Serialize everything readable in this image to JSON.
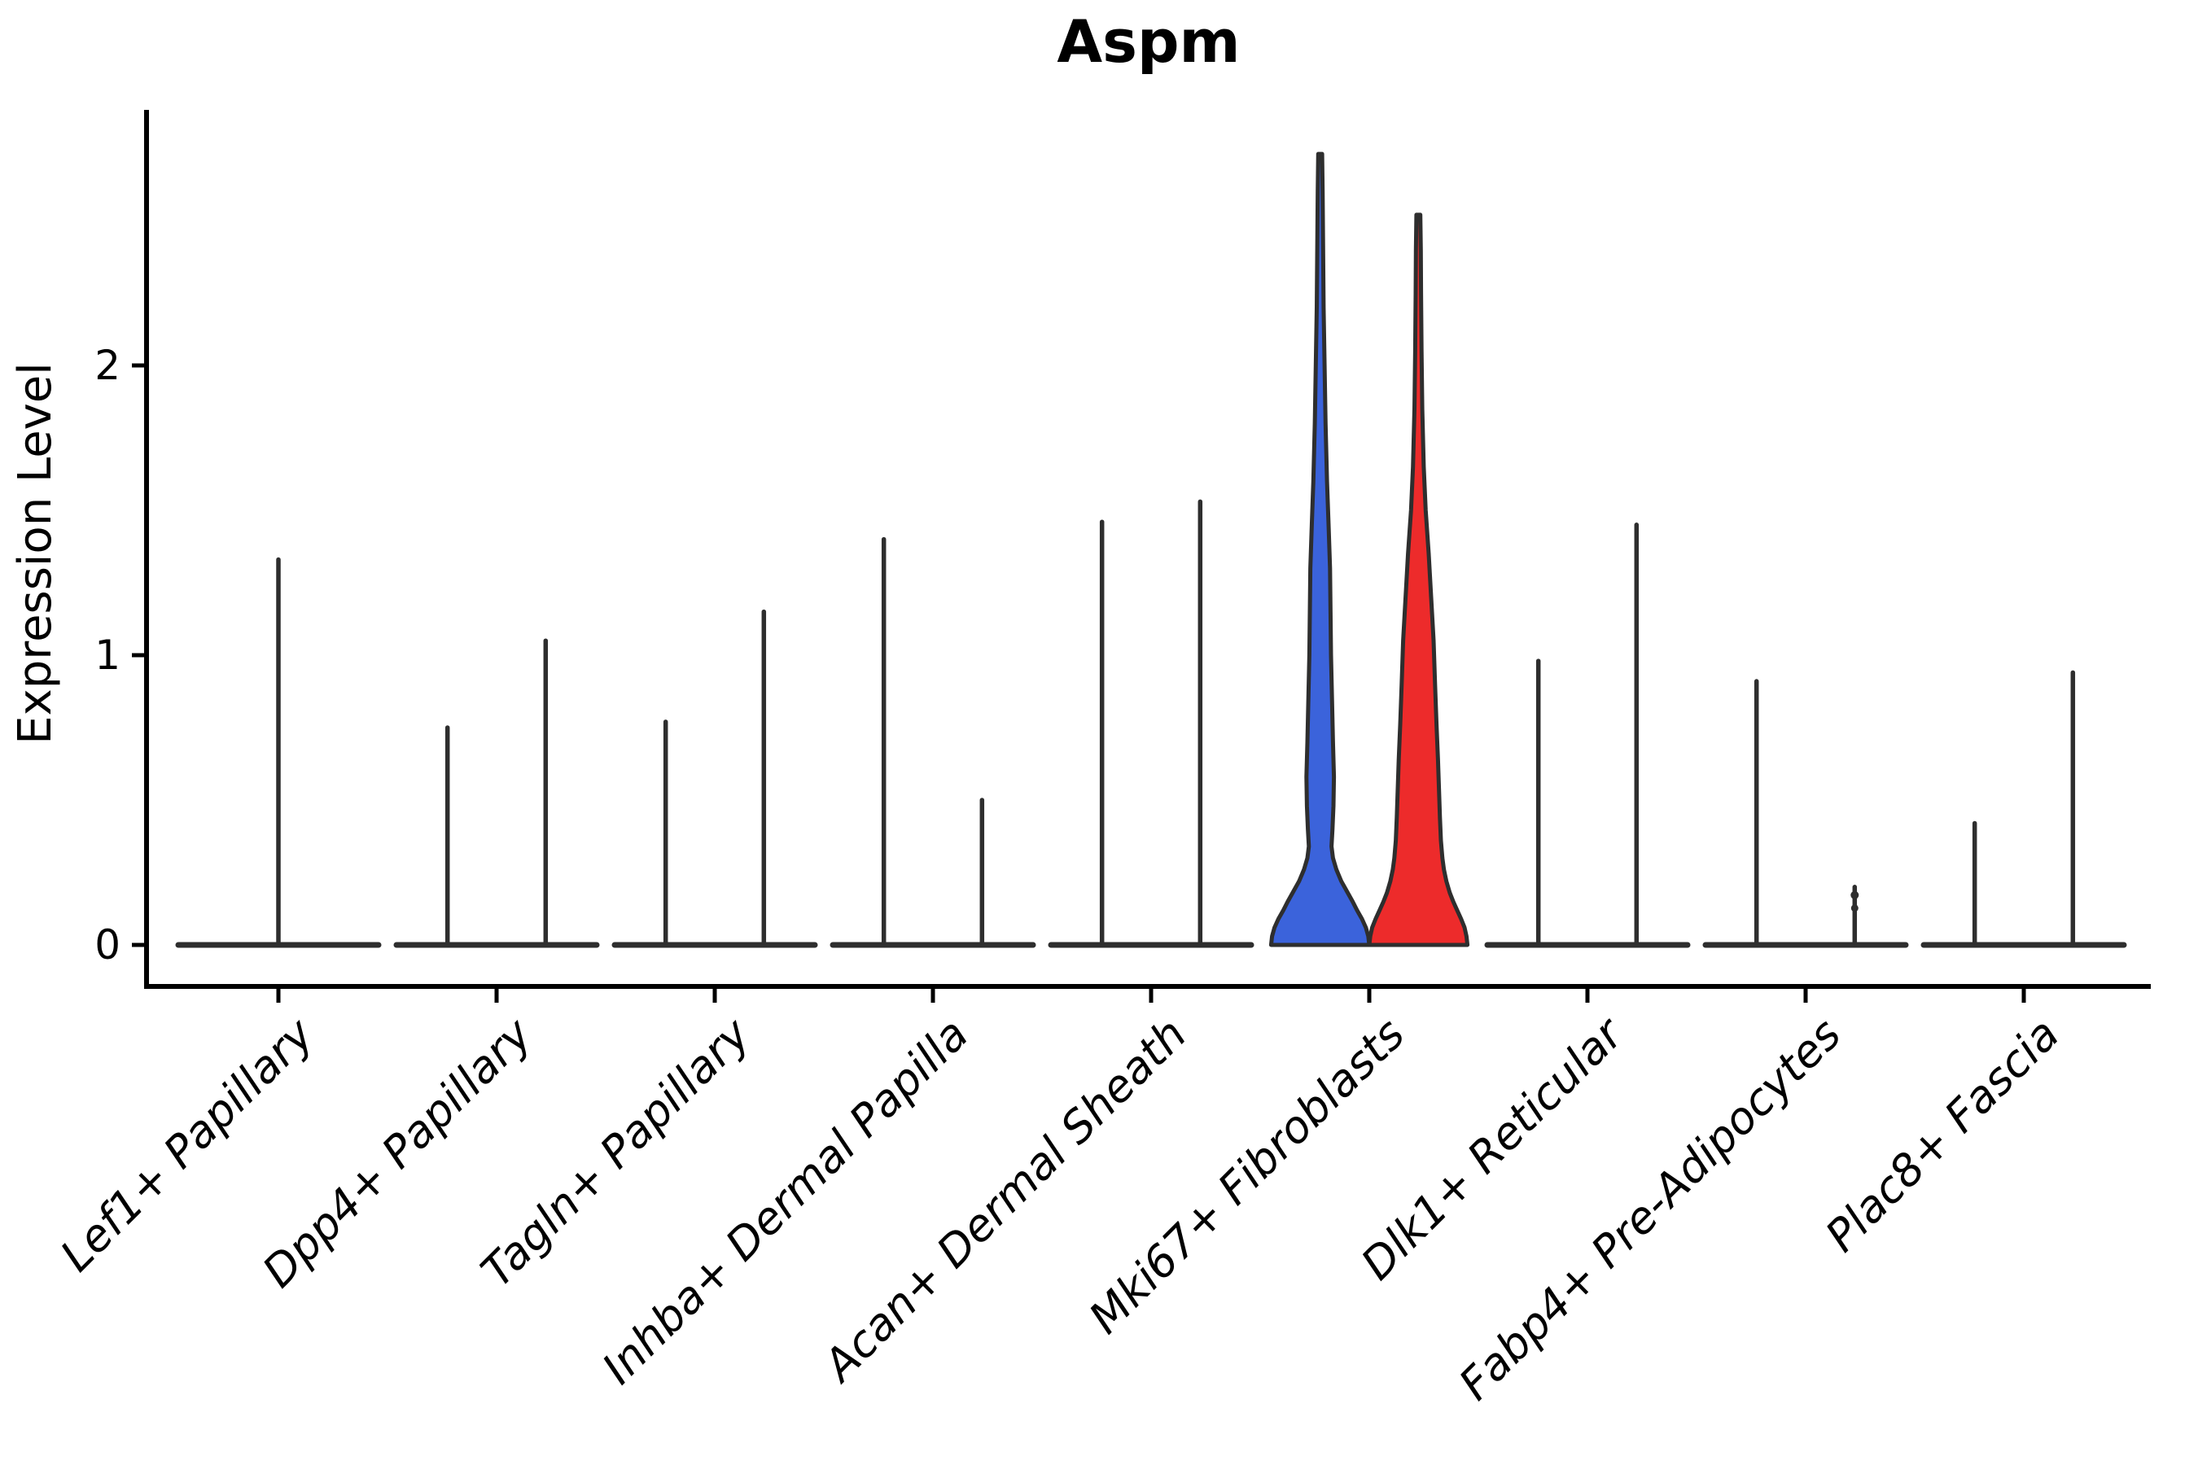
{
  "title": "Aspm",
  "chart_data": {
    "type": "violin",
    "title": "Aspm",
    "xlabel": "",
    "ylabel": "Expression Level",
    "yticks": [
      "0",
      "1",
      "2"
    ],
    "ylim": [
      -0.14,
      2.88
    ],
    "grid": false,
    "legend": "none",
    "categories": [
      "Lef1+ Papillary",
      "Dpp4+ Papillary",
      "Tagln+ Papillary",
      "Inhba+ Dermal Papilla",
      "Acan+ Dermal Sheath",
      "Mki67+ Fibroblasts",
      "Dlk1+ Reticular",
      "Fabp4+ Pre-Adipocytes",
      "Plac8+ Fascia"
    ],
    "colors": {
      "split_left_fill": "#3B63DB",
      "split_right_fill": "#ED2B2B",
      "line": "#2e2e2e",
      "axis": "#000000"
    },
    "violins": [
      {
        "category_index": 0,
        "category": "Lef1+ Papillary",
        "offset": "center",
        "max_expression": 1.33,
        "style": "spike"
      },
      {
        "category_index": 1,
        "category": "Dpp4+ Papillary",
        "offset": "left",
        "max_expression": 0.75,
        "style": "spike"
      },
      {
        "category_index": 1,
        "category": "Dpp4+ Papillary",
        "offset": "right",
        "max_expression": 1.05,
        "style": "spike"
      },
      {
        "category_index": 2,
        "category": "Tagln+ Papillary",
        "offset": "left",
        "max_expression": 0.77,
        "style": "spike"
      },
      {
        "category_index": 2,
        "category": "Tagln+ Papillary",
        "offset": "right",
        "max_expression": 1.15,
        "style": "spike"
      },
      {
        "category_index": 3,
        "category": "Inhba+ Dermal Papilla",
        "offset": "left",
        "max_expression": 1.4,
        "style": "spike"
      },
      {
        "category_index": 3,
        "category": "Inhba+ Dermal Papilla",
        "offset": "right",
        "max_expression": 0.5,
        "style": "spike"
      },
      {
        "category_index": 4,
        "category": "Acan+ Dermal Sheath",
        "offset": "left",
        "max_expression": 1.46,
        "style": "spike"
      },
      {
        "category_index": 4,
        "category": "Acan+ Dermal Sheath",
        "offset": "right",
        "max_expression": 1.53,
        "style": "spike"
      },
      {
        "category_index": 5,
        "category": "Mki67+ Fibroblasts",
        "offset": "left",
        "max_expression": 2.73,
        "style": "violin",
        "fill": "#3B63DB",
        "profile": "mki67_left"
      },
      {
        "category_index": 5,
        "category": "Mki67+ Fibroblasts",
        "offset": "right",
        "max_expression": 2.52,
        "style": "violin",
        "fill": "#ED2B2B",
        "profile": "mki67_right"
      },
      {
        "category_index": 6,
        "category": "Dlk1+ Reticular",
        "offset": "left",
        "max_expression": 0.98,
        "style": "spike"
      },
      {
        "category_index": 6,
        "category": "Dlk1+ Reticular",
        "offset": "right",
        "max_expression": 1.45,
        "style": "spike"
      },
      {
        "category_index": 7,
        "category": "Fabp4+ Pre-Adipocytes",
        "offset": "left",
        "max_expression": 0.91,
        "style": "spike"
      },
      {
        "category_index": 7,
        "category": "Fabp4+ Pre-Adipocytes",
        "offset": "right",
        "max_expression": 0.2,
        "style": "bead"
      },
      {
        "category_index": 8,
        "category": "Plac8+ Fascia",
        "offset": "left",
        "max_expression": 0.42,
        "style": "spike"
      },
      {
        "category_index": 8,
        "category": "Plac8+ Fascia",
        "offset": "right",
        "max_expression": 0.94,
        "style": "spike"
      }
    ],
    "density_profiles": {
      "mki67_left": [
        [
          0.0,
          1.0
        ],
        [
          0.03,
          0.98
        ],
        [
          0.06,
          0.93
        ],
        [
          0.09,
          0.85
        ],
        [
          0.12,
          0.75
        ],
        [
          0.15,
          0.66
        ],
        [
          0.18,
          0.56
        ],
        [
          0.22,
          0.43
        ],
        [
          0.26,
          0.33
        ],
        [
          0.3,
          0.26
        ],
        [
          0.34,
          0.23
        ],
        [
          0.4,
          0.25
        ],
        [
          0.48,
          0.27
        ],
        [
          0.58,
          0.28
        ],
        [
          0.7,
          0.26
        ],
        [
          0.85,
          0.24
        ],
        [
          1.0,
          0.22
        ],
        [
          1.15,
          0.21
        ],
        [
          1.3,
          0.2
        ],
        [
          1.45,
          0.17
        ],
        [
          1.6,
          0.14
        ],
        [
          1.8,
          0.11
        ],
        [
          2.0,
          0.09
        ],
        [
          2.2,
          0.07
        ],
        [
          2.4,
          0.06
        ],
        [
          2.6,
          0.05
        ],
        [
          2.73,
          0.04
        ]
      ],
      "mki67_right": [
        [
          0.0,
          1.0
        ],
        [
          0.03,
          0.98
        ],
        [
          0.06,
          0.94
        ],
        [
          0.09,
          0.87
        ],
        [
          0.12,
          0.79
        ],
        [
          0.15,
          0.71
        ],
        [
          0.18,
          0.64
        ],
        [
          0.22,
          0.57
        ],
        [
          0.26,
          0.52
        ],
        [
          0.3,
          0.49
        ],
        [
          0.36,
          0.46
        ],
        [
          0.44,
          0.44
        ],
        [
          0.54,
          0.42
        ],
        [
          0.64,
          0.4
        ],
        [
          0.76,
          0.37
        ],
        [
          0.9,
          0.34
        ],
        [
          1.05,
          0.31
        ],
        [
          1.2,
          0.26
        ],
        [
          1.35,
          0.21
        ],
        [
          1.5,
          0.15
        ],
        [
          1.65,
          0.11
        ],
        [
          1.85,
          0.08
        ],
        [
          2.05,
          0.065
        ],
        [
          2.25,
          0.055
        ],
        [
          2.4,
          0.05
        ],
        [
          2.52,
          0.04
        ]
      ]
    }
  }
}
